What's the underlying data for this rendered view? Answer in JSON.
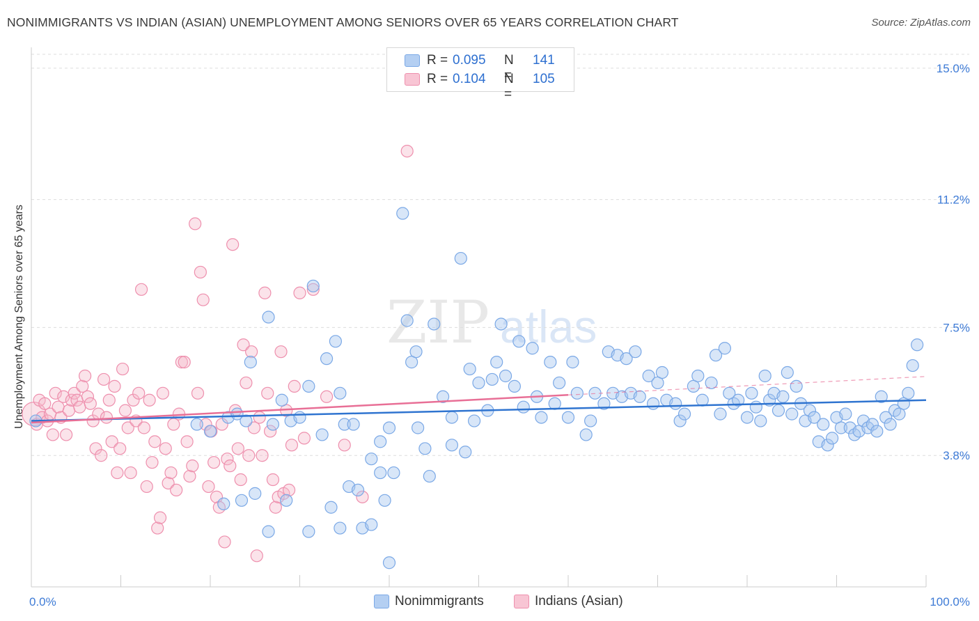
{
  "title": "NONIMMIGRANTS VS INDIAN (ASIAN) UNEMPLOYMENT AMONG SENIORS OVER 65 YEARS CORRELATION CHART",
  "source": "Source: ZipAtlas.com",
  "watermark": {
    "zip": "ZIP",
    "atlas": "atlas"
  },
  "legend": {
    "r_label": "R =",
    "n_label": "N =",
    "series": [
      {
        "name": "Nonimmigrants",
        "r": "0.095",
        "n": "141",
        "fill": "#a9c8f0",
        "stroke": "#7aa8e6"
      },
      {
        "name": "Indians (Asian)",
        "r": "0.104",
        "n": "105",
        "fill": "#f6b8cb",
        "stroke": "#ee8fad"
      }
    ]
  },
  "colors": {
    "blue_line": "#2f74d0",
    "pink_line": "#e86f96",
    "axis_text": "#3e7bd6",
    "grid": "#dddddd"
  },
  "chart_data": {
    "type": "scatter",
    "title": "NONIMMIGRANTS VS INDIAN (ASIAN) UNEMPLOYMENT AMONG SENIORS OVER 65 YEARS CORRELATION CHART",
    "xlabel": "",
    "ylabel": "Unemployment Among Seniors over 65 years",
    "xlim": [
      0,
      100
    ],
    "ylim": [
      0,
      15.4
    ],
    "x_tick_labels": [
      "0.0%",
      "100.0%"
    ],
    "y_ticks": [
      3.8,
      7.5,
      11.2,
      15.0
    ],
    "y_tick_labels": [
      "3.8%",
      "7.5%",
      "11.2%",
      "15.0%"
    ],
    "grid": true,
    "legend_position": "top-center",
    "series": [
      {
        "name": "Nonimmigrants",
        "trend": {
          "x": [
            0,
            100
          ],
          "y": [
            4.8,
            5.4
          ]
        },
        "points": [
          [
            0.5,
            4.8
          ],
          [
            24.5,
            6.5
          ],
          [
            26.5,
            7.8
          ],
          [
            29,
            4.8
          ],
          [
            31,
            5.8
          ],
          [
            31.5,
            8.7
          ],
          [
            33,
            6.6
          ],
          [
            34,
            7.1
          ],
          [
            34.5,
            5.6
          ],
          [
            35,
            4.7
          ],
          [
            36,
            4.7
          ],
          [
            38,
            3.7
          ],
          [
            39,
            3.3
          ],
          [
            40,
            4.6
          ],
          [
            40.5,
            3.3
          ],
          [
            41.5,
            10.8
          ],
          [
            42,
            7.7
          ],
          [
            42.5,
            6.5
          ],
          [
            43,
            6.8
          ],
          [
            43.2,
            4.6
          ],
          [
            44,
            4.0
          ],
          [
            44.5,
            3.2
          ],
          [
            45,
            7.6
          ],
          [
            46,
            5.5
          ],
          [
            47,
            4.1
          ],
          [
            47,
            4.9
          ],
          [
            48,
            9.5
          ],
          [
            48.5,
            3.9
          ],
          [
            49,
            6.3
          ],
          [
            49.5,
            4.8
          ],
          [
            50,
            5.9
          ],
          [
            51,
            5.1
          ],
          [
            51.5,
            6.0
          ],
          [
            52,
            6.5
          ],
          [
            52.5,
            7.6
          ],
          [
            53,
            6.1
          ],
          [
            54,
            5.8
          ],
          [
            54.5,
            7.1
          ],
          [
            55,
            5.2
          ],
          [
            56,
            6.9
          ],
          [
            56.5,
            5.5
          ],
          [
            57,
            4.9
          ],
          [
            58,
            6.5
          ],
          [
            58.5,
            5.3
          ],
          [
            59,
            5.9
          ],
          [
            60,
            4.9
          ],
          [
            60.5,
            6.5
          ],
          [
            61,
            5.6
          ],
          [
            62,
            4.4
          ],
          [
            62.5,
            4.8
          ],
          [
            63,
            5.6
          ],
          [
            64,
            5.3
          ],
          [
            64.5,
            6.8
          ],
          [
            65,
            5.6
          ],
          [
            65.5,
            6.7
          ],
          [
            66,
            5.5
          ],
          [
            66.5,
            6.6
          ],
          [
            67,
            5.6
          ],
          [
            67.5,
            6.8
          ],
          [
            68,
            5.5
          ],
          [
            69,
            6.1
          ],
          [
            69.5,
            5.3
          ],
          [
            70,
            5.9
          ],
          [
            70.5,
            6.2
          ],
          [
            71,
            5.4
          ],
          [
            72,
            5.3
          ],
          [
            72.5,
            4.8
          ],
          [
            73,
            5.0
          ],
          [
            74,
            5.8
          ],
          [
            74.5,
            6.1
          ],
          [
            75,
            5.4
          ],
          [
            76,
            5.9
          ],
          [
            76.5,
            6.7
          ],
          [
            77,
            5.0
          ],
          [
            77.5,
            6.9
          ],
          [
            78,
            5.6
          ],
          [
            78.5,
            5.3
          ],
          [
            79,
            5.4
          ],
          [
            80,
            4.9
          ],
          [
            80.5,
            5.6
          ],
          [
            81,
            5.2
          ],
          [
            81.5,
            4.8
          ],
          [
            82,
            6.1
          ],
          [
            82.5,
            5.4
          ],
          [
            83,
            5.6
          ],
          [
            83.5,
            5.1
          ],
          [
            84,
            5.5
          ],
          [
            84.5,
            6.2
          ],
          [
            85,
            5.0
          ],
          [
            85.5,
            5.8
          ],
          [
            86,
            5.3
          ],
          [
            86.5,
            4.8
          ],
          [
            87,
            5.1
          ],
          [
            87.5,
            4.9
          ],
          [
            88,
            4.2
          ],
          [
            88.5,
            4.7
          ],
          [
            89,
            4.1
          ],
          [
            89.5,
            4.3
          ],
          [
            90,
            4.9
          ],
          [
            90.5,
            4.6
          ],
          [
            91,
            5.0
          ],
          [
            91.5,
            4.6
          ],
          [
            92,
            4.4
          ],
          [
            92.5,
            4.5
          ],
          [
            93,
            4.8
          ],
          [
            93.5,
            4.6
          ],
          [
            94,
            4.7
          ],
          [
            94.5,
            4.5
          ],
          [
            95,
            5.5
          ],
          [
            95.5,
            4.9
          ],
          [
            96,
            4.7
          ],
          [
            96.5,
            5.1
          ],
          [
            97,
            5.0
          ],
          [
            97.5,
            5.3
          ],
          [
            98,
            5.6
          ],
          [
            98.5,
            6.4
          ],
          [
            99,
            7.0
          ],
          [
            21.5,
            2.4
          ],
          [
            23.5,
            2.5
          ],
          [
            25,
            2.7
          ],
          [
            26.5,
            1.6
          ],
          [
            28.5,
            2.5
          ],
          [
            31,
            1.6
          ],
          [
            33.5,
            2.3
          ],
          [
            34.5,
            1.7
          ],
          [
            35.5,
            2.9
          ],
          [
            36.5,
            2.8
          ],
          [
            37,
            1.7
          ],
          [
            38,
            1.8
          ],
          [
            39.5,
            2.5
          ],
          [
            40,
            0.7
          ],
          [
            18.5,
            4.7
          ],
          [
            20,
            4.5
          ],
          [
            22,
            4.9
          ],
          [
            23,
            5.0
          ],
          [
            24,
            4.8
          ],
          [
            27,
            4.7
          ],
          [
            28,
            5.4
          ],
          [
            30,
            4.9
          ],
          [
            32.5,
            4.4
          ],
          [
            39,
            4.2
          ]
        ]
      },
      {
        "name": "Indians (Asian)",
        "trend": {
          "x": [
            0,
            60
          ],
          "y": [
            4.75,
            5.55
          ]
        },
        "points": [
          [
            0.3,
            5.0
          ],
          [
            0.6,
            4.7
          ],
          [
            0.9,
            5.4
          ],
          [
            1.2,
            4.9
          ],
          [
            1.5,
            5.3
          ],
          [
            1.8,
            4.8
          ],
          [
            2.1,
            5.0
          ],
          [
            2.4,
            4.4
          ],
          [
            2.7,
            5.6
          ],
          [
            3.0,
            5.2
          ],
          [
            3.3,
            4.9
          ],
          [
            3.6,
            5.5
          ],
          [
            3.9,
            4.4
          ],
          [
            4.2,
            5.1
          ],
          [
            4.5,
            5.4
          ],
          [
            4.8,
            5.6
          ],
          [
            5.1,
            5.4
          ],
          [
            5.4,
            5.2
          ],
          [
            5.7,
            5.8
          ],
          [
            6.0,
            6.1
          ],
          [
            6.3,
            5.5
          ],
          [
            6.6,
            5.3
          ],
          [
            6.9,
            4.8
          ],
          [
            7.2,
            4.0
          ],
          [
            7.5,
            5.0
          ],
          [
            7.8,
            3.8
          ],
          [
            8.1,
            6.0
          ],
          [
            8.4,
            4.9
          ],
          [
            8.7,
            5.4
          ],
          [
            9.0,
            4.2
          ],
          [
            9.3,
            5.8
          ],
          [
            9.6,
            3.3
          ],
          [
            9.9,
            4.0
          ],
          [
            10.2,
            6.3
          ],
          [
            10.5,
            5.1
          ],
          [
            10.8,
            4.6
          ],
          [
            11.1,
            3.3
          ],
          [
            11.4,
            5.4
          ],
          [
            11.7,
            4.8
          ],
          [
            12.0,
            5.6
          ],
          [
            12.3,
            8.6
          ],
          [
            12.6,
            4.6
          ],
          [
            12.9,
            2.9
          ],
          [
            13.2,
            5.4
          ],
          [
            13.5,
            3.6
          ],
          [
            13.8,
            4.2
          ],
          [
            14.1,
            1.7
          ],
          [
            14.4,
            2.0
          ],
          [
            14.7,
            5.6
          ],
          [
            15.0,
            4.0
          ],
          [
            15.3,
            3.0
          ],
          [
            15.6,
            3.3
          ],
          [
            15.9,
            4.7
          ],
          [
            16.2,
            2.8
          ],
          [
            16.5,
            5.0
          ],
          [
            16.8,
            6.5
          ],
          [
            17.1,
            6.5
          ],
          [
            17.4,
            4.2
          ],
          [
            17.7,
            3.2
          ],
          [
            18.0,
            3.5
          ],
          [
            18.3,
            10.5
          ],
          [
            18.6,
            5.6
          ],
          [
            18.9,
            9.1
          ],
          [
            19.2,
            8.3
          ],
          [
            19.5,
            4.7
          ],
          [
            19.8,
            2.9
          ],
          [
            20.1,
            4.5
          ],
          [
            20.4,
            3.6
          ],
          [
            20.7,
            2.6
          ],
          [
            21.0,
            2.3
          ],
          [
            21.3,
            4.7
          ],
          [
            21.6,
            1.3
          ],
          [
            21.9,
            3.7
          ],
          [
            22.2,
            3.5
          ],
          [
            22.5,
            9.9
          ],
          [
            22.8,
            5.1
          ],
          [
            23.1,
            4.0
          ],
          [
            23.4,
            3.1
          ],
          [
            23.7,
            7.0
          ],
          [
            24.0,
            5.9
          ],
          [
            24.3,
            3.8
          ],
          [
            24.6,
            6.8
          ],
          [
            24.9,
            4.6
          ],
          [
            25.2,
            0.9
          ],
          [
            25.5,
            4.9
          ],
          [
            25.8,
            3.8
          ],
          [
            26.1,
            8.5
          ],
          [
            26.4,
            5.6
          ],
          [
            26.7,
            4.5
          ],
          [
            27.0,
            3.1
          ],
          [
            27.3,
            2.3
          ],
          [
            27.6,
            2.6
          ],
          [
            27.9,
            6.8
          ],
          [
            28.2,
            2.7
          ],
          [
            28.5,
            5.1
          ],
          [
            28.8,
            2.8
          ],
          [
            29.1,
            4.1
          ],
          [
            29.4,
            5.8
          ],
          [
            30.0,
            8.5
          ],
          [
            30.5,
            4.3
          ],
          [
            31.5,
            8.6
          ],
          [
            33.0,
            5.5
          ],
          [
            35.0,
            4.1
          ],
          [
            37.0,
            2.6
          ],
          [
            42.0,
            12.6
          ]
        ]
      }
    ]
  }
}
